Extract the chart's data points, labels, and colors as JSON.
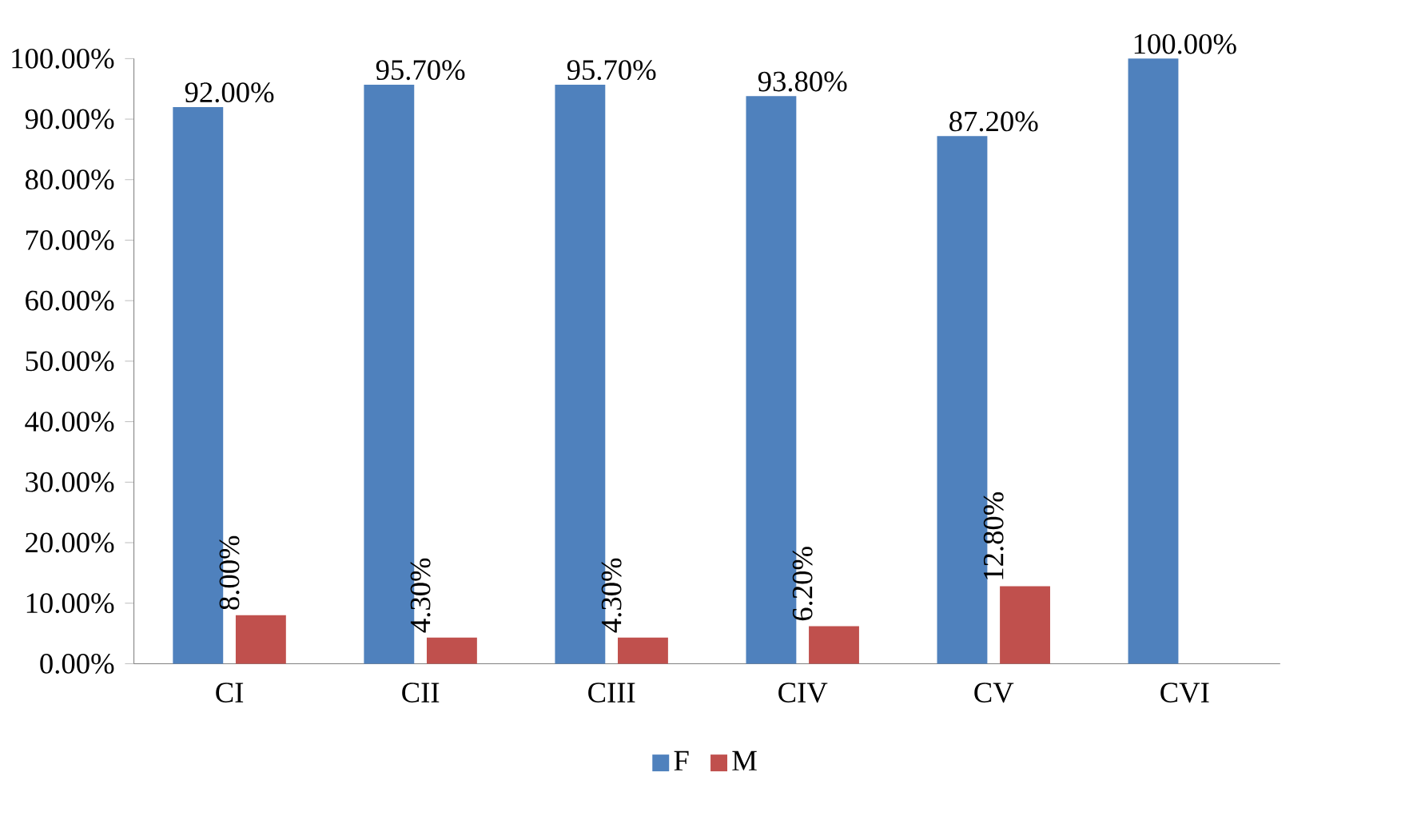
{
  "chart_data": {
    "type": "bar",
    "categories": [
      "CI",
      "CII",
      "CIII",
      "CIV",
      "CV",
      "CVI"
    ],
    "series": [
      {
        "name": "F",
        "color": "#4f81bd",
        "values": [
          92.0,
          95.7,
          95.7,
          93.8,
          87.2,
          100.0
        ],
        "value_labels": [
          "92.00%",
          "95.70%",
          "95.70%",
          "93.80%",
          "87.20%",
          "100.00%"
        ]
      },
      {
        "name": "M",
        "color": "#c0504d",
        "values": [
          8.0,
          4.3,
          4.3,
          6.2,
          12.8,
          0
        ],
        "value_labels": [
          "8.00%",
          "4.30%",
          "4.30%",
          "6.20%",
          "12.80%",
          null
        ]
      }
    ],
    "ylim": [
      0,
      100
    ],
    "yticks": [
      {
        "value": 0,
        "label": "0.00%"
      },
      {
        "value": 10,
        "label": "10.00%"
      },
      {
        "value": 20,
        "label": "20.00%"
      },
      {
        "value": 30,
        "label": "30.00%"
      },
      {
        "value": 40,
        "label": "40.00%"
      },
      {
        "value": 50,
        "label": "50.00%"
      },
      {
        "value": 60,
        "label": "60.00%"
      },
      {
        "value": 70,
        "label": "70.00%"
      },
      {
        "value": 80,
        "label": "80.00%"
      },
      {
        "value": 90,
        "label": "90.00%"
      },
      {
        "value": 100,
        "label": "100.00%"
      }
    ],
    "grid": false,
    "legend": "bottom"
  }
}
